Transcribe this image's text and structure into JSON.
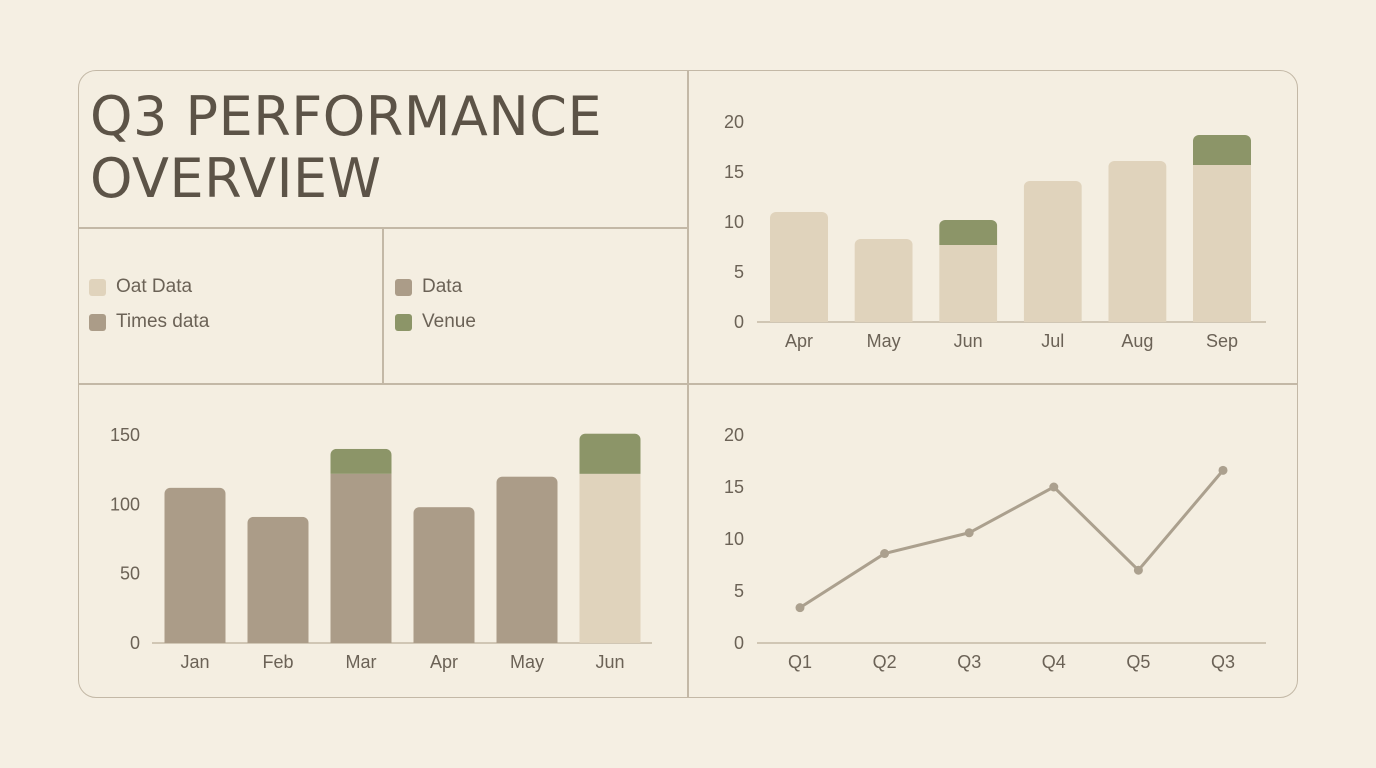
{
  "title_line1": "Q3 PERFORMANCE",
  "title_line2": "OVERVIEW",
  "colors": {
    "oat": "#e0d3bc",
    "taupe": "#ab9c88",
    "olive": "#8c9568",
    "line": "#aba08e",
    "axis": "#c3b8a6"
  },
  "legend": [
    {
      "label": "Oat Data",
      "color": "#e0d3bc"
    },
    {
      "label": "Times data",
      "color": "#ab9c88"
    },
    {
      "label": "Data",
      "color": "#ab9c88"
    },
    {
      "label": "Venue",
      "color": "#8c9568"
    }
  ],
  "chart_data": [
    {
      "type": "bar",
      "categories": [
        "Apr",
        "May",
        "Jun",
        "Jul",
        "Aug",
        "Sep"
      ],
      "series": [
        {
          "values": [
            11,
            8.3,
            7.7,
            14.1,
            16.1,
            15.7
          ],
          "color": "#e0d3bc"
        },
        {
          "values": [
            0,
            0,
            2.5,
            0,
            0,
            3.0
          ],
          "color": "#8c9568"
        }
      ],
      "yticks": [
        0,
        5,
        10,
        15,
        20
      ],
      "ylim": [
        0,
        20
      ],
      "grid": false
    },
    {
      "type": "bar",
      "categories": [
        "Jan",
        "Feb",
        "Mar",
        "Apr",
        "May",
        "Jun"
      ],
      "series": [
        {
          "values": [
            112,
            91,
            122,
            98,
            120,
            0
          ],
          "color": "#ab9c88"
        },
        {
          "values": [
            0,
            0,
            0,
            0,
            0,
            122
          ],
          "color": "#e0d3bc"
        },
        {
          "values": [
            0,
            0,
            18,
            0,
            0,
            29
          ],
          "color": "#8c9568"
        }
      ],
      "yticks": [
        0,
        50,
        100,
        150
      ],
      "ylim": [
        0,
        150
      ],
      "grid": false
    },
    {
      "type": "line",
      "categories": [
        "Q1",
        "Q2",
        "Q3",
        "Q4",
        "Q5",
        "Q3"
      ],
      "series": [
        {
          "values": [
            3.4,
            8.6,
            10.6,
            15.0,
            7.0,
            16.6
          ],
          "color": "#aba08e"
        }
      ],
      "yticks": [
        0,
        5,
        10,
        15,
        20
      ],
      "ylim": [
        0,
        20
      ],
      "grid": false
    }
  ]
}
